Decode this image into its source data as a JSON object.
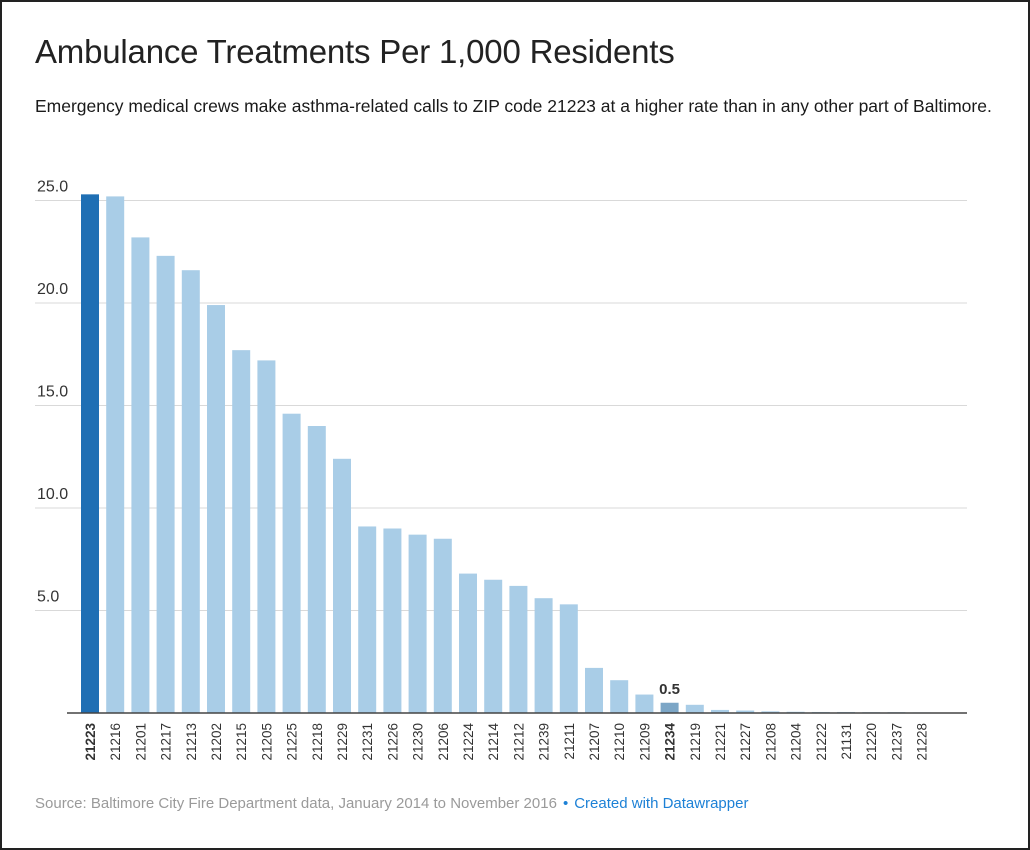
{
  "title": "Ambulance Treatments Per 1,000 Residents",
  "subtitle": "Emergency medical crews make asthma-related calls to ZIP code 21223 at a higher rate than in any other part of Baltimore.",
  "footer": {
    "source": "Source: Baltimore City Fire Department data, January 2014 to November 2016",
    "separator": "•",
    "credit": "Created with Datawrapper"
  },
  "colors": {
    "highlight": "#1f6fb4",
    "bar": "#a9cde7",
    "annotated": "#7ca6c6",
    "grid": "#d9d9d9",
    "axis": "#444444",
    "tick_label": "#333333",
    "credit_link": "#1d81d6"
  },
  "chart_data": {
    "type": "bar",
    "ylim": [
      0,
      25
    ],
    "yticks": [
      "25.0",
      "20.0",
      "15.0",
      "10.0",
      "5.0"
    ],
    "ytick_values": [
      25,
      20,
      15,
      10,
      5
    ],
    "grid": true,
    "highlight_category": "21223",
    "annotated_category": "21234",
    "annotation": "0.5",
    "categories": [
      "21223",
      "21216",
      "21201",
      "21217",
      "21213",
      "21202",
      "21215",
      "21205",
      "21225",
      "21218",
      "21229",
      "21231",
      "21226",
      "21230",
      "21206",
      "21224",
      "21214",
      "21212",
      "21239",
      "21211",
      "21207",
      "21210",
      "21209",
      "21234",
      "21219",
      "21221",
      "21227",
      "21208",
      "21204",
      "21222",
      "21131",
      "21220",
      "21237",
      "21228"
    ],
    "values": [
      25.3,
      25.2,
      23.2,
      22.3,
      21.6,
      19.9,
      17.7,
      17.2,
      14.6,
      14.0,
      12.4,
      9.1,
      9.0,
      8.7,
      8.5,
      6.8,
      6.5,
      6.2,
      5.6,
      5.3,
      2.2,
      1.6,
      0.9,
      0.5,
      0.4,
      0.15,
      0.12,
      0.08,
      0.06,
      0.05,
      0.05,
      0.04,
      0.04,
      0.03
    ]
  }
}
